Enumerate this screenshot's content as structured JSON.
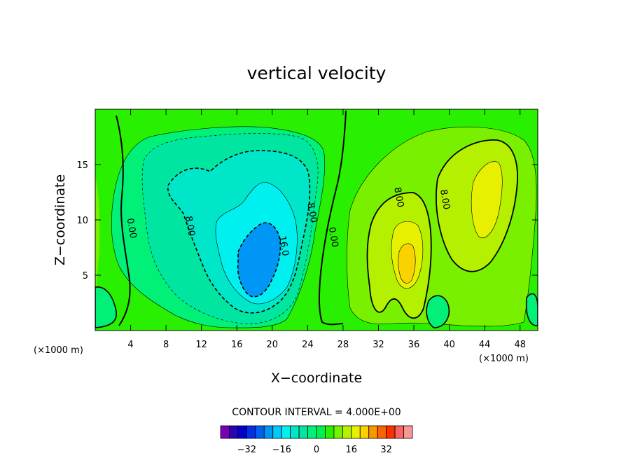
{
  "chart_data": {
    "type": "contour",
    "title": "vertical velocity",
    "xlabel": "X−coordinate",
    "ylabel": "Z−coordinate",
    "x_unit": "(×1000 m)",
    "y_unit": "(×1000 m)",
    "xlim": [
      0,
      50
    ],
    "ylim": [
      0,
      20
    ],
    "x_ticks": [
      4,
      8,
      12,
      16,
      20,
      24,
      28,
      32,
      36,
      40,
      44,
      48
    ],
    "y_ticks": [
      5,
      10,
      15
    ],
    "x_tick_labels": [
      "4",
      "8",
      "12",
      "16",
      "20",
      "24",
      "28",
      "32",
      "36",
      "40",
      "44",
      "48"
    ],
    "y_tick_labels": [
      "5",
      "10",
      "15"
    ],
    "contour_interval_text": "CONTOUR INTERVAL = 4.000E+00",
    "contour_interval": 4.0,
    "contour_labels": [
      {
        "text": "0.00",
        "x": 3.8,
        "z": 9.2
      },
      {
        "text": "8.00",
        "x": 10.4,
        "z": 9.4
      },
      {
        "text": "16.0",
        "x": 21.0,
        "z": 7.6
      },
      {
        "text": "8.00",
        "x": 24.2,
        "z": 10.6
      },
      {
        "text": "0.00",
        "x": 26.6,
        "z": 8.4
      },
      {
        "text": "8.00",
        "x": 34.0,
        "z": 12.0
      },
      {
        "text": "8.00",
        "x": 39.2,
        "z": 11.8
      }
    ],
    "colorbar": {
      "colors": [
        "#7a00b4",
        "#2c00b4",
        "#0000c8",
        "#0030e6",
        "#0060f0",
        "#0096f5",
        "#00c8fa",
        "#00f0f0",
        "#00e6c8",
        "#00e6a0",
        "#00f078",
        "#00f050",
        "#28f000",
        "#78f000",
        "#b4f000",
        "#e6f000",
        "#fad200",
        "#fa9600",
        "#fa6400",
        "#fa3200",
        "#fa6464",
        "#fa9696"
      ],
      "ticks": [
        -32,
        -16,
        0,
        16,
        32
      ],
      "tick_labels": [
        "−32",
        "−16",
        "0",
        "16",
        "32"
      ],
      "min": -44,
      "max": 44
    },
    "features": [
      {
        "name": "downdraft-core",
        "x": 18.5,
        "z": 6.5,
        "peak_value": -28
      },
      {
        "name": "updraft-core-1",
        "x": 34.5,
        "z": 6.5,
        "peak_value": 26
      },
      {
        "name": "updraft-core-2",
        "x": 43.5,
        "z": 11.5,
        "peak_value": 18
      }
    ]
  },
  "colors": {
    "field_background": "#28f000",
    "contour_line": "#000000"
  }
}
